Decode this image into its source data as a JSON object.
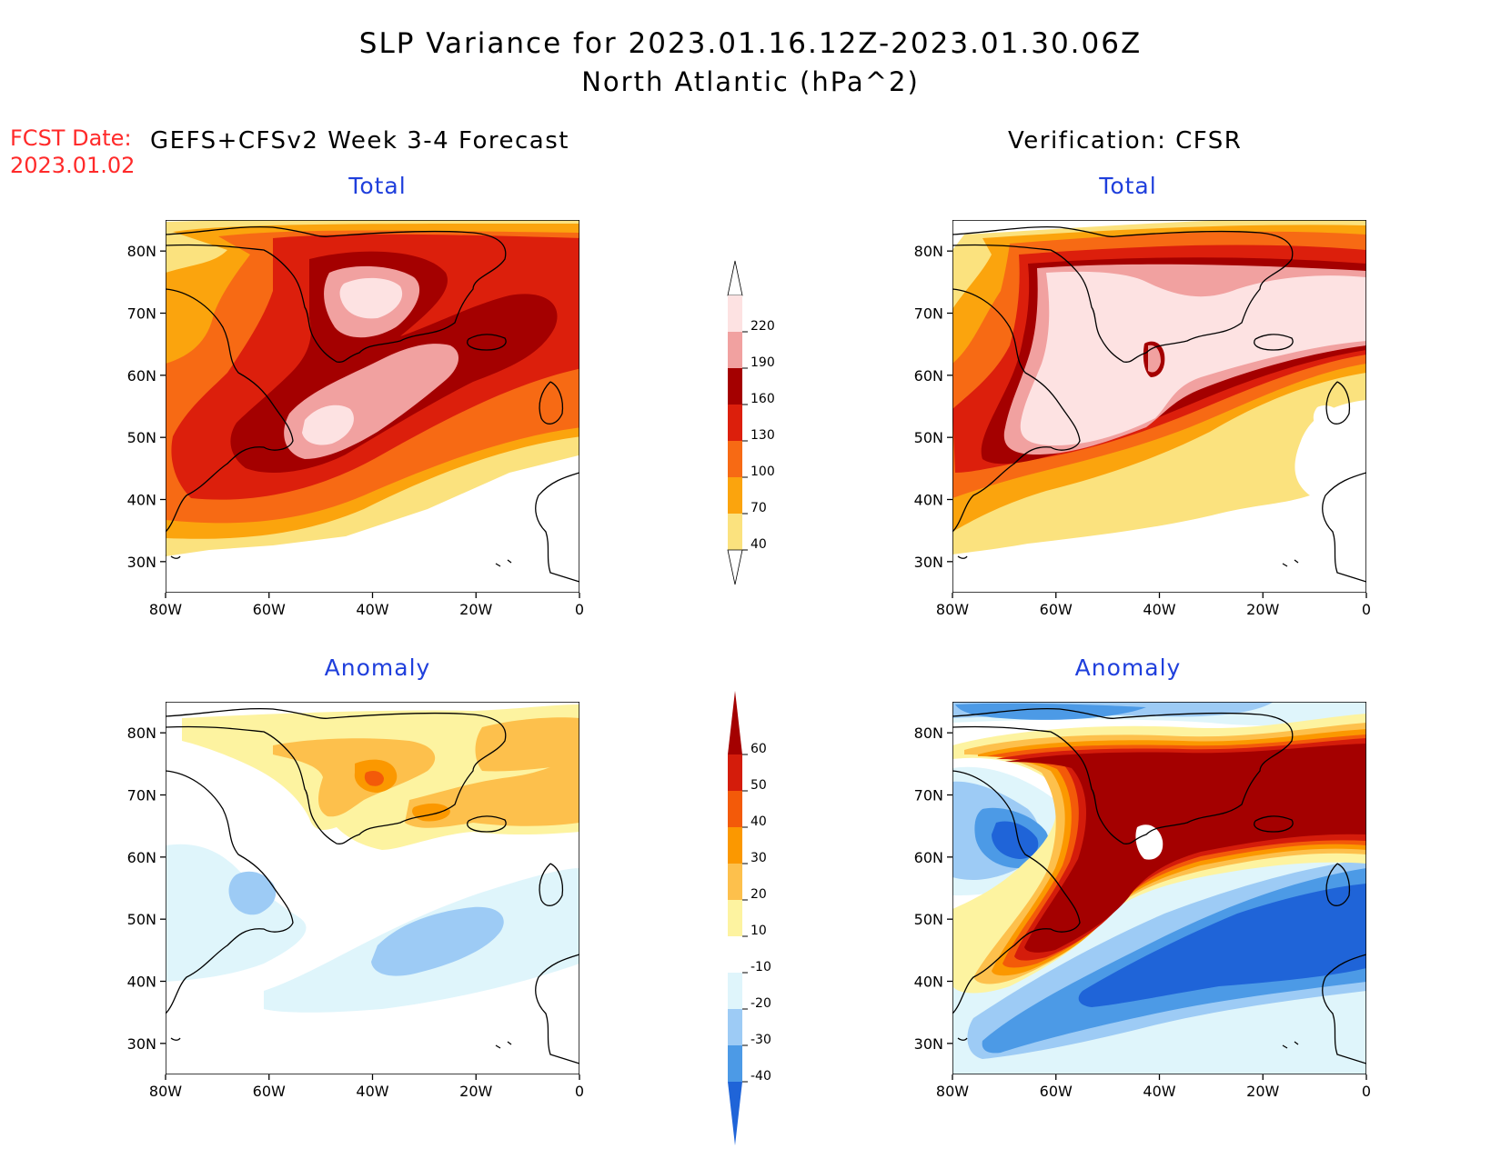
{
  "title": {
    "line1": "SLP Variance for 2023.01.16.12Z-2023.01.30.06Z",
    "line2": "North Atlantic (hPa^2)"
  },
  "fcst_date": {
    "label": "FCST Date:",
    "value": "2023.01.02"
  },
  "left_heading": "GEFS+CFSv2 Week 3-4 Forecast",
  "right_heading": "Verification: CFSR",
  "panel_titles": {
    "total": "Total",
    "anomaly": "Anomaly"
  },
  "lat_labels": [
    "80N",
    "70N",
    "60N",
    "50N",
    "40N",
    "30N"
  ],
  "lon_labels": [
    "80W",
    "60W",
    "40W",
    "20W",
    "0"
  ],
  "total_colorbar": {
    "levels": [
      "40",
      "70",
      "100",
      "130",
      "160",
      "190",
      "220"
    ],
    "colors": [
      "#fbe27e",
      "#fba40d",
      "#f76a14",
      "#dc1f0c",
      "#a40000",
      "#f1a1a0",
      "#fde2e2"
    ]
  },
  "anomaly_colorbar": {
    "levels": [
      "-40",
      "-30",
      "-20",
      "-10",
      "10",
      "20",
      "30",
      "40",
      "50",
      "60"
    ],
    "colors": [
      "#1f64d8",
      "#4c9ae6",
      "#9dcbf5",
      "#dff5fb",
      "#ffffff",
      "#fdf3a0",
      "#fdc04c",
      "#fb9800",
      "#f35a09",
      "#d41c0b",
      "#a40000"
    ]
  },
  "colors": {
    "panel_title": "#1f3fdc",
    "fcst_date": "#ff2a2a"
  }
}
